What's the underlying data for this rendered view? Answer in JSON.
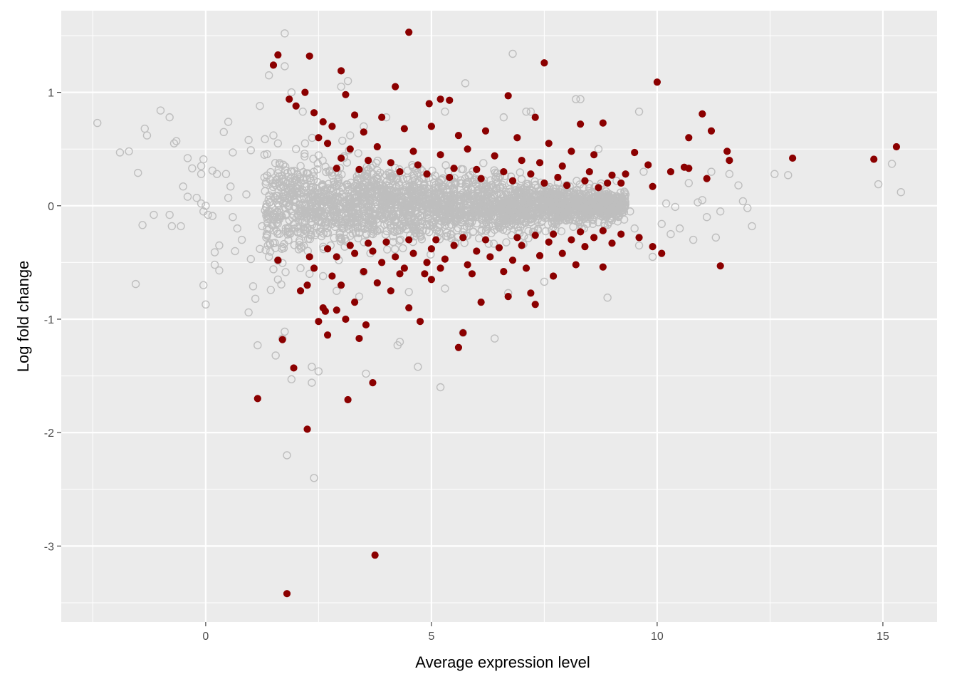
{
  "chart_data": {
    "type": "scatter",
    "title": "",
    "xlabel": "Average expression level",
    "ylabel": "Log fold change",
    "xlim": [
      -3.2,
      16.2
    ],
    "ylim": [
      -3.67,
      1.72
    ],
    "x_ticks": [
      0,
      5,
      10,
      15
    ],
    "x_tick_labels": [
      "0",
      "5",
      "10",
      "15"
    ],
    "y_ticks": [
      -3,
      -2,
      -1,
      0,
      1
    ],
    "y_tick_labels": [
      "-3",
      "-2",
      "-1",
      "0",
      "1"
    ],
    "grid": true,
    "legend": "none",
    "colors": {
      "panel_background": "#ebebeb",
      "grid_major": "#ffffff",
      "not_significant": "#bebebe",
      "significant": "#8b0000"
    },
    "series": [
      {
        "marker": "open-circle",
        "color": "#bebebe",
        "points": [
          [
            -2.4,
            0.73
          ],
          [
            -1.9,
            0.47
          ],
          [
            -1.7,
            0.48
          ],
          [
            -1.5,
            0.29
          ],
          [
            -1.4,
            -0.17
          ],
          [
            -1.35,
            0.68
          ],
          [
            -1.3,
            0.62
          ],
          [
            -1.55,
            -0.69
          ],
          [
            -1.0,
            0.84
          ],
          [
            -0.8,
            0.78
          ],
          [
            -0.7,
            0.55
          ],
          [
            -0.65,
            0.57
          ],
          [
            -1.15,
            -0.08
          ],
          [
            -0.8,
            -0.08
          ],
          [
            -0.75,
            -0.18
          ],
          [
            -0.55,
            -0.18
          ],
          [
            -0.5,
            0.17
          ],
          [
            -0.4,
            0.42
          ],
          [
            -0.4,
            0.08
          ],
          [
            -0.2,
            0.07
          ],
          [
            -0.3,
            0.33
          ],
          [
            -0.1,
            0.35
          ],
          [
            -0.05,
            0.41
          ],
          [
            -0.1,
            0.28
          ],
          [
            0.0,
            0.0
          ],
          [
            -0.05,
            -0.05
          ],
          [
            -0.1,
            0.02
          ],
          [
            0.05,
            -0.08
          ],
          [
            0.15,
            0.31
          ],
          [
            0.25,
            0.28
          ],
          [
            0.15,
            -0.09
          ],
          [
            0.2,
            -0.41
          ],
          [
            0.3,
            -0.35
          ],
          [
            0.2,
            -0.52
          ],
          [
            0.3,
            -0.57
          ],
          [
            0.4,
            0.65
          ],
          [
            0.45,
            0.28
          ],
          [
            0.5,
            0.07
          ],
          [
            0.55,
            0.17
          ],
          [
            0.6,
            0.47
          ],
          [
            0.5,
            0.74
          ],
          [
            0.6,
            -0.1
          ],
          [
            0.7,
            -0.2
          ],
          [
            0.65,
            -0.4
          ],
          [
            0.8,
            -0.3
          ],
          [
            0.9,
            0.1
          ],
          [
            0.95,
            0.58
          ],
          [
            1.0,
            0.49
          ],
          [
            1.0,
            -0.47
          ],
          [
            1.05,
            -0.71
          ],
          [
            1.1,
            -0.82
          ],
          [
            0.95,
            -0.94
          ],
          [
            1.2,
            0.88
          ],
          [
            1.2,
            -0.38
          ],
          [
            1.25,
            -0.18
          ],
          [
            -0.05,
            -0.7
          ],
          [
            0.0,
            -0.87
          ],
          [
            1.15,
            -1.23
          ],
          [
            1.55,
            -1.32
          ],
          [
            1.7,
            -1.17
          ],
          [
            1.75,
            -1.11
          ],
          [
            1.9,
            -1.53
          ],
          [
            1.8,
            -2.2
          ],
          [
            2.35,
            -1.56
          ],
          [
            2.35,
            -1.42
          ],
          [
            2.5,
            -1.46
          ],
          [
            2.4,
            -2.4
          ],
          [
            1.75,
            1.23
          ],
          [
            1.75,
            1.52
          ],
          [
            1.4,
            1.15
          ],
          [
            1.9,
            1.0
          ],
          [
            2.15,
            0.83
          ],
          [
            3.0,
            1.05
          ],
          [
            3.15,
            1.1
          ],
          [
            3.55,
            -1.48
          ],
          [
            4.25,
            -1.23
          ],
          [
            4.3,
            -1.2
          ],
          [
            4.7,
            -1.42
          ],
          [
            5.2,
            -1.6
          ],
          [
            5.7,
            -1.12
          ],
          [
            6.4,
            -1.17
          ],
          [
            5.75,
            1.08
          ],
          [
            6.8,
            1.34
          ],
          [
            7.1,
            0.83
          ],
          [
            7.2,
            0.83
          ],
          [
            8.2,
            0.94
          ],
          [
            8.3,
            0.94
          ],
          [
            9.6,
            0.83
          ],
          [
            9.7,
            0.3
          ],
          [
            9.9,
            -0.45
          ],
          [
            10.2,
            0.02
          ],
          [
            10.4,
            -0.01
          ],
          [
            10.5,
            -0.2
          ],
          [
            10.7,
            0.2
          ],
          [
            10.9,
            0.03
          ],
          [
            11.0,
            0.05
          ],
          [
            11.1,
            -0.1
          ],
          [
            11.2,
            0.3
          ],
          [
            11.4,
            -0.05
          ],
          [
            11.6,
            0.28
          ],
          [
            11.8,
            0.18
          ],
          [
            11.9,
            0.04
          ],
          [
            12.0,
            -0.02
          ],
          [
            12.1,
            -0.18
          ],
          [
            12.6,
            0.28
          ],
          [
            12.9,
            0.27
          ],
          [
            14.9,
            0.19
          ],
          [
            15.2,
            0.37
          ],
          [
            15.4,
            0.12
          ],
          [
            10.1,
            -0.16
          ],
          [
            10.3,
            -0.25
          ],
          [
            10.8,
            -0.3
          ],
          [
            11.3,
            -0.28
          ],
          [
            9.6,
            -0.35
          ],
          [
            8.9,
            -0.81
          ],
          [
            8.7,
            0.5
          ],
          [
            9.1,
            0.22
          ],
          [
            9.3,
            0.1
          ],
          [
            9.4,
            -0.05
          ],
          [
            9.5,
            -0.2
          ],
          [
            3.2,
            0.62
          ],
          [
            3.5,
            0.7
          ],
          [
            4.0,
            0.78
          ],
          [
            5.3,
            0.83
          ],
          [
            6.6,
            0.78
          ],
          [
            2.6,
            -0.62
          ],
          [
            2.9,
            -0.75
          ],
          [
            3.4,
            -0.8
          ],
          [
            4.5,
            -0.76
          ],
          [
            5.3,
            -0.73
          ],
          [
            6.7,
            -0.77
          ],
          [
            7.5,
            -0.67
          ],
          [
            1.5,
            0.62
          ],
          [
            1.6,
            0.55
          ],
          [
            1.3,
            0.45
          ],
          [
            1.4,
            -0.45
          ],
          [
            1.5,
            -0.56
          ],
          [
            1.6,
            -0.65
          ],
          [
            2.0,
            0.5
          ],
          [
            2.2,
            0.55
          ],
          [
            2.1,
            -0.55
          ],
          [
            2.3,
            -0.6
          ],
          [
            1.3,
            0.25
          ],
          [
            1.35,
            -0.25
          ]
        ]
      },
      {
        "marker": "filled-circle",
        "color": "#8b0000",
        "points": [
          [
            1.5,
            1.24
          ],
          [
            1.6,
            1.33
          ],
          [
            2.3,
            1.32
          ],
          [
            3.0,
            1.19
          ],
          [
            4.5,
            1.53
          ],
          [
            7.5,
            1.26
          ],
          [
            10.0,
            1.09
          ],
          [
            2.2,
            1.0
          ],
          [
            1.85,
            0.94
          ],
          [
            2.0,
            0.88
          ],
          [
            2.4,
            0.82
          ],
          [
            3.1,
            0.98
          ],
          [
            3.3,
            0.8
          ],
          [
            3.9,
            0.78
          ],
          [
            4.2,
            1.05
          ],
          [
            4.95,
            0.9
          ],
          [
            5.2,
            0.94
          ],
          [
            5.4,
            0.93
          ],
          [
            6.7,
            0.97
          ],
          [
            7.3,
            0.78
          ],
          [
            8.3,
            0.72
          ],
          [
            8.8,
            0.73
          ],
          [
            11.0,
            0.81
          ],
          [
            11.2,
            0.66
          ],
          [
            10.7,
            0.6
          ],
          [
            11.55,
            0.48
          ],
          [
            11.6,
            0.4
          ],
          [
            13.0,
            0.42
          ],
          [
            14.8,
            0.41
          ],
          [
            15.3,
            0.52
          ],
          [
            10.7,
            0.33
          ],
          [
            11.1,
            0.24
          ],
          [
            10.3,
            0.3
          ],
          [
            9.8,
            0.36
          ],
          [
            10.6,
            0.34
          ],
          [
            9.3,
            0.28
          ],
          [
            9.5,
            0.47
          ],
          [
            2.6,
            0.74
          ],
          [
            2.8,
            0.7
          ],
          [
            3.5,
            0.65
          ],
          [
            4.4,
            0.68
          ],
          [
            5.0,
            0.7
          ],
          [
            5.6,
            0.62
          ],
          [
            6.2,
            0.66
          ],
          [
            6.9,
            0.6
          ],
          [
            7.6,
            0.55
          ],
          [
            8.1,
            0.48
          ],
          [
            8.6,
            0.45
          ],
          [
            2.7,
            0.55
          ],
          [
            3.2,
            0.5
          ],
          [
            3.8,
            0.52
          ],
          [
            4.6,
            0.48
          ],
          [
            5.2,
            0.45
          ],
          [
            5.8,
            0.5
          ],
          [
            6.4,
            0.44
          ],
          [
            7.0,
            0.4
          ],
          [
            7.4,
            0.38
          ],
          [
            7.9,
            0.35
          ],
          [
            8.5,
            0.3
          ],
          [
            9.0,
            0.27
          ],
          [
            3.0,
            0.42
          ],
          [
            3.6,
            0.4
          ],
          [
            4.1,
            0.38
          ],
          [
            4.7,
            0.36
          ],
          [
            5.5,
            0.33
          ],
          [
            6.0,
            0.32
          ],
          [
            6.6,
            0.3
          ],
          [
            7.2,
            0.28
          ],
          [
            7.8,
            0.25
          ],
          [
            8.4,
            0.22
          ],
          [
            8.9,
            0.2
          ],
          [
            9.2,
            0.2
          ],
          [
            2.5,
            0.6
          ],
          [
            2.9,
            0.33
          ],
          [
            3.4,
            0.32
          ],
          [
            4.3,
            0.3
          ],
          [
            4.9,
            0.28
          ],
          [
            5.4,
            0.25
          ],
          [
            6.1,
            0.24
          ],
          [
            6.8,
            0.22
          ],
          [
            7.5,
            0.2
          ],
          [
            8.0,
            0.18
          ],
          [
            8.7,
            0.16
          ],
          [
            9.9,
            0.17
          ],
          [
            1.6,
            -0.48
          ],
          [
            2.1,
            -0.75
          ],
          [
            2.25,
            -0.7
          ],
          [
            2.6,
            -0.9
          ],
          [
            2.65,
            -0.93
          ],
          [
            2.5,
            -1.02
          ],
          [
            2.7,
            -1.14
          ],
          [
            2.9,
            -0.92
          ],
          [
            3.1,
            -1.0
          ],
          [
            3.4,
            -1.17
          ],
          [
            3.55,
            -1.05
          ],
          [
            2.8,
            -0.62
          ],
          [
            3.0,
            -0.7
          ],
          [
            3.3,
            -0.85
          ],
          [
            3.5,
            -0.58
          ],
          [
            3.8,
            -0.68
          ],
          [
            4.1,
            -0.75
          ],
          [
            4.5,
            -0.9
          ],
          [
            4.75,
            -1.02
          ],
          [
            4.85,
            -0.6
          ],
          [
            5.2,
            -0.55
          ],
          [
            5.6,
            -1.25
          ],
          [
            5.7,
            -1.12
          ],
          [
            6.1,
            -0.85
          ],
          [
            6.7,
            -0.8
          ],
          [
            7.2,
            -0.77
          ],
          [
            7.3,
            -0.87
          ],
          [
            7.7,
            -0.62
          ],
          [
            8.2,
            -0.52
          ],
          [
            8.8,
            -0.54
          ],
          [
            9.9,
            -0.36
          ],
          [
            10.1,
            -0.42
          ],
          [
            11.4,
            -0.53
          ],
          [
            1.7,
            -1.18
          ],
          [
            1.95,
            -1.43
          ],
          [
            1.15,
            -1.7
          ],
          [
            2.25,
            -1.97
          ],
          [
            3.15,
            -1.71
          ],
          [
            3.7,
            -1.56
          ],
          [
            1.8,
            -3.42
          ],
          [
            3.75,
            -3.08
          ],
          [
            2.4,
            -0.55
          ],
          [
            2.9,
            -0.45
          ],
          [
            3.3,
            -0.42
          ],
          [
            3.7,
            -0.4
          ],
          [
            4.2,
            -0.45
          ],
          [
            4.6,
            -0.42
          ],
          [
            5.0,
            -0.38
          ],
          [
            5.5,
            -0.35
          ],
          [
            6.0,
            -0.4
          ],
          [
            6.5,
            -0.37
          ],
          [
            7.0,
            -0.35
          ],
          [
            7.6,
            -0.32
          ],
          [
            8.1,
            -0.3
          ],
          [
            8.6,
            -0.28
          ],
          [
            9.2,
            -0.25
          ],
          [
            9.6,
            -0.28
          ],
          [
            3.9,
            -0.5
          ],
          [
            4.4,
            -0.55
          ],
          [
            4.9,
            -0.5
          ],
          [
            5.3,
            -0.47
          ],
          [
            5.8,
            -0.52
          ],
          [
            6.3,
            -0.45
          ],
          [
            6.8,
            -0.48
          ],
          [
            7.4,
            -0.44
          ],
          [
            7.9,
            -0.42
          ],
          [
            8.4,
            -0.36
          ],
          [
            9.0,
            -0.33
          ],
          [
            2.3,
            -0.45
          ],
          [
            2.7,
            -0.38
          ],
          [
            3.2,
            -0.35
          ],
          [
            3.6,
            -0.33
          ],
          [
            4.0,
            -0.32
          ],
          [
            4.5,
            -0.3
          ],
          [
            5.1,
            -0.3
          ],
          [
            5.7,
            -0.28
          ],
          [
            6.2,
            -0.3
          ],
          [
            6.9,
            -0.28
          ],
          [
            7.3,
            -0.26
          ],
          [
            7.7,
            -0.25
          ],
          [
            8.3,
            -0.23
          ],
          [
            8.8,
            -0.22
          ],
          [
            4.3,
            -0.6
          ],
          [
            5.0,
            -0.65
          ],
          [
            5.9,
            -0.6
          ],
          [
            6.6,
            -0.58
          ],
          [
            7.1,
            -0.55
          ]
        ]
      }
    ]
  }
}
